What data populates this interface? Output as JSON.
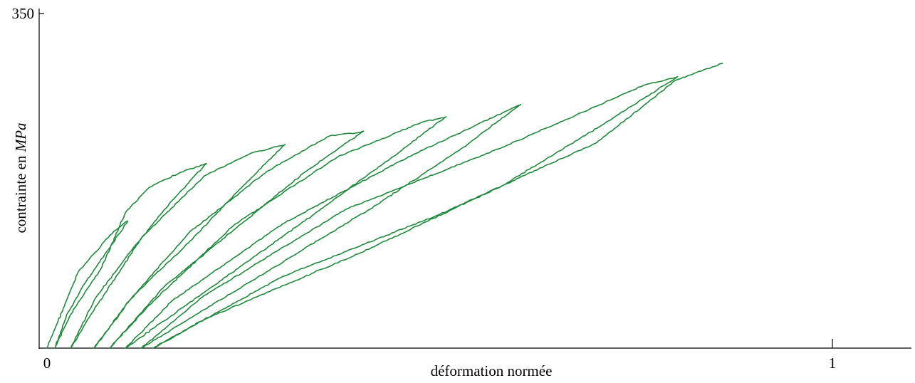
{
  "chart_data": {
    "type": "line",
    "title": "",
    "xlabel": "déformation normée",
    "ylabel_prefix": "contrainte en ",
    "ylabel_unit": "MPa",
    "xlim": [
      0,
      1
    ],
    "ylim": [
      0,
      350
    ],
    "x_ticks": [
      {
        "value": 0,
        "label": "0"
      },
      {
        "value": 1,
        "label": "1"
      }
    ],
    "y_ticks": [
      {
        "value": 350,
        "label": "350"
      }
    ],
    "grid": false,
    "legend": "none",
    "series_color": "#1f8a3c",
    "series": [
      {
        "x": [
          0.0,
          0.04,
          0.08,
          0.1,
          0.103,
          0.08,
          0.05,
          0.025,
          0.01,
          0.03,
          0.07,
          0.1,
          0.13,
          0.17,
          0.2,
          0.203,
          0.16,
          0.11,
          0.06,
          0.03,
          0.06,
          0.12,
          0.2,
          0.26,
          0.3,
          0.303,
          0.25,
          0.18,
          0.11,
          0.06,
          0.1,
          0.18,
          0.28,
          0.36,
          0.4,
          0.403,
          0.33,
          0.24,
          0.15,
          0.08,
          0.13,
          0.24,
          0.37,
          0.48,
          0.505,
          0.508,
          0.44,
          0.34,
          0.22,
          0.1,
          0.16,
          0.3,
          0.46,
          0.59,
          0.6,
          0.603,
          0.53,
          0.42,
          0.28,
          0.12,
          0.2,
          0.38,
          0.58,
          0.76,
          0.8,
          0.803,
          0.71,
          0.58,
          0.4,
          0.2,
          0.135,
          0.3,
          0.5,
          0.7,
          0.8,
          0.86
        ],
        "y": [
          0,
          80,
          118,
          132,
          133,
          105,
          70,
          35,
          0,
          35,
          85,
          142,
          168,
          184,
          192,
          193,
          155,
          105,
          50,
          0,
          40,
          115,
          180,
          204,
          212,
          213,
          170,
          110,
          55,
          0,
          45,
          120,
          185,
          222,
          226,
          227,
          185,
          125,
          65,
          0,
          45,
          130,
          200,
          237,
          241,
          242,
          200,
          140,
          70,
          0,
          50,
          130,
          200,
          250,
          254,
          255,
          210,
          150,
          80,
          0,
          55,
          145,
          210,
          275,
          283,
          284,
          235,
          170,
          100,
          30,
          0,
          75,
          140,
          215,
          280,
          298
        ]
      }
    ]
  }
}
